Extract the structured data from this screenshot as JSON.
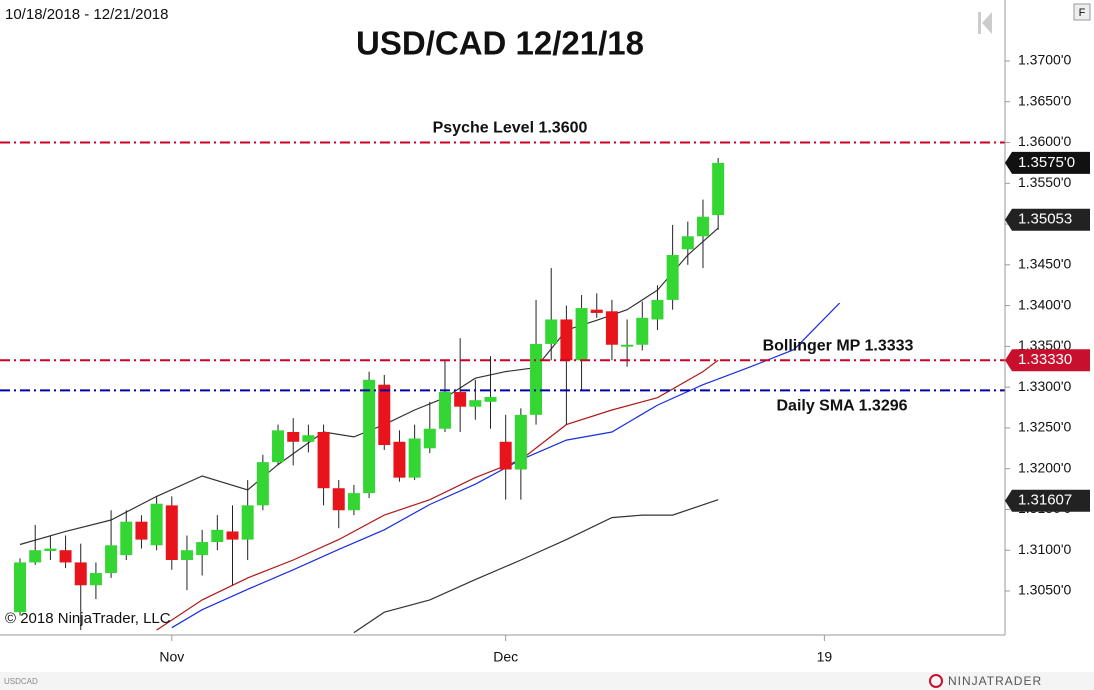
{
  "chart_data": {
    "type": "candlestick",
    "title": "USD/CAD 12/21/18",
    "subtitle": "10/18/2018 - 12/21/2018",
    "copyright": "© 2018 NinjaTrader, LLC",
    "symbol": "USDCAD",
    "brand": "NINJATRADER",
    "button": "F",
    "up_color": "#33d633",
    "down_color": "#e8141c",
    "open": [
      1.3024,
      1.3085,
      1.3099,
      1.31,
      1.3085,
      1.3057,
      1.3072,
      1.3094,
      1.3135,
      1.3106,
      1.3155,
      1.3088,
      1.3094,
      1.311,
      1.3123,
      1.3113,
      1.3155,
      1.3208,
      1.3245,
      1.3233,
      1.3245,
      1.3176,
      1.3149,
      1.317,
      1.3303,
      1.3233,
      1.3189,
      1.3225,
      1.3249,
      1.3294,
      1.3276,
      1.3282,
      1.3233,
      1.3199,
      1.3266,
      1.3353,
      1.3383,
      1.3333,
      1.3395,
      1.3393,
      1.335,
      1.3352,
      1.3383,
      1.3407,
      1.3469,
      1.3485,
      1.3511
    ],
    "high": [
      1.309,
      1.3131,
      1.3118,
      1.3118,
      1.3108,
      1.3085,
      1.3149,
      1.3149,
      1.3143,
      1.3166,
      1.3166,
      1.3118,
      1.3125,
      1.3143,
      1.3155,
      1.3186,
      1.3217,
      1.3254,
      1.3262,
      1.3254,
      1.3254,
      1.3186,
      1.318,
      1.3319,
      1.3315,
      1.3247,
      1.3254,
      1.3282,
      1.3333,
      1.336,
      1.3309,
      1.3338,
      1.3266,
      1.3274,
      1.3407,
      1.3446,
      1.34,
      1.3413,
      1.3415,
      1.3407,
      1.3383,
      1.3405,
      1.3425,
      1.3499,
      1.3503,
      1.353,
      1.3581
    ],
    "low": [
      1.302,
      1.3082,
      1.3088,
      1.3078,
      1.3002,
      1.304,
      1.3066,
      1.3088,
      1.3102,
      1.31,
      1.3076,
      1.3051,
      1.3069,
      1.31,
      1.3057,
      1.3088,
      1.3149,
      1.3204,
      1.3204,
      1.322,
      1.3155,
      1.3127,
      1.3143,
      1.3164,
      1.3223,
      1.3184,
      1.3186,
      1.3219,
      1.3245,
      1.3245,
      1.326,
      1.3249,
      1.3162,
      1.3162,
      1.3254,
      1.3333,
      1.3254,
      1.3296,
      1.3385,
      1.3333,
      1.3325,
      1.3345,
      1.337,
      1.3395,
      1.345,
      1.3446,
      1.3493
    ],
    "close": [
      1.3085,
      1.31,
      1.3102,
      1.3085,
      1.3057,
      1.3072,
      1.3106,
      1.3135,
      1.3113,
      1.3157,
      1.3088,
      1.31,
      1.311,
      1.3125,
      1.3113,
      1.3155,
      1.3208,
      1.3247,
      1.3233,
      1.3241,
      1.3176,
      1.3149,
      1.317,
      1.3309,
      1.3229,
      1.3189,
      1.3237,
      1.3249,
      1.3294,
      1.3276,
      1.3284,
      1.3288,
      1.3199,
      1.3266,
      1.3353,
      1.3383,
      1.3333,
      1.3397,
      1.3391,
      1.3352,
      1.3352,
      1.3385,
      1.3407,
      1.3462,
      1.3485,
      1.3509,
      1.3575
    ],
    "lines": [
      {
        "color": "#333333",
        "x": [
          0,
          3,
          6,
          9,
          12,
          15,
          17,
          20,
          22,
          24,
          26,
          28,
          30,
          32,
          34,
          36,
          38,
          40,
          42,
          44,
          46
        ],
        "values": [
          1.3107,
          1.3123,
          1.3137,
          1.3166,
          1.3191,
          1.3174,
          1.3205,
          1.3245,
          1.3239,
          1.3254,
          1.3272,
          1.3287,
          1.3311,
          1.3319,
          1.3324,
          1.337,
          1.3382,
          1.3395,
          1.3419,
          1.3462,
          1.3495
        ]
      },
      {
        "color": "#b01818",
        "x": [
          9,
          12,
          15,
          18,
          21,
          24,
          27,
          30,
          33,
          36,
          39,
          42,
          45,
          46
        ],
        "values": [
          1.3002,
          1.3039,
          1.3066,
          1.3088,
          1.3113,
          1.3143,
          1.3162,
          1.3189,
          1.3211,
          1.3254,
          1.3272,
          1.3287,
          1.3319,
          1.3333
        ]
      },
      {
        "color": "#1a2ee0",
        "x": [
          10,
          12,
          15,
          18,
          21,
          24,
          27,
          30,
          33,
          36,
          39,
          42,
          45,
          48,
          51,
          54
        ],
        "values": [
          1.3005,
          1.3027,
          1.3052,
          1.3076,
          1.3101,
          1.3125,
          1.3156,
          1.3181,
          1.3211,
          1.3235,
          1.3245,
          1.3278,
          1.3303,
          1.3324,
          1.3346,
          1.3403
        ]
      },
      {
        "color": "#333333",
        "x": [
          22,
          24,
          27,
          30,
          33,
          36,
          39,
          41,
          43,
          46
        ],
        "values": [
          1.2999,
          1.3024,
          1.3039,
          1.3064,
          1.3088,
          1.3113,
          1.314,
          1.3143,
          1.3143,
          1.3162
        ]
      }
    ],
    "levels": [
      {
        "value": 1.36,
        "label": "Psyche Level 1.3600",
        "color": "#cc0022"
      },
      {
        "value": 1.3333,
        "label": "Bollinger MP 1.3333",
        "color": "#cc0022"
      },
      {
        "value": 1.3296,
        "label": "Daily SMA 1.3296",
        "color": "#0000aa"
      }
    ],
    "price_tags": [
      {
        "value": 1.3575,
        "label": "1.3575'0",
        "color": "#111111"
      },
      {
        "value": 1.35053,
        "label": "1.35053",
        "color": "#222222"
      },
      {
        "value": 1.3333,
        "label": "1.33330",
        "color": "#c8102e"
      },
      {
        "value": 1.31607,
        "label": "1.31607",
        "color": "#222222"
      }
    ],
    "ylim": [
      1.2996,
      1.37748
    ],
    "yticks": [
      {
        "value": 1.305,
        "label": "1.3050'0"
      },
      {
        "value": 1.31,
        "label": "1.3100'0"
      },
      {
        "value": 1.315,
        "label": "1.3150'0"
      },
      {
        "value": 1.32,
        "label": "1.3200'0"
      },
      {
        "value": 1.325,
        "label": "1.3250'0"
      },
      {
        "value": 1.33,
        "label": "1.3300'0"
      },
      {
        "value": 1.335,
        "label": "1.3350'0"
      },
      {
        "value": 1.34,
        "label": "1.3400'0"
      },
      {
        "value": 1.345,
        "label": "1.3450'0"
      },
      {
        "value": 1.35,
        "label": "1.3500'0"
      },
      {
        "value": 1.355,
        "label": "1.3550'0"
      },
      {
        "value": 1.36,
        "label": "1.3600'0"
      },
      {
        "value": 1.365,
        "label": "1.3650'0"
      },
      {
        "value": 1.37,
        "label": "1.3700'0"
      }
    ],
    "xlim": [
      -1.32,
      64.9
    ],
    "xticks": [
      {
        "value": 10,
        "label": "Nov"
      },
      {
        "value": 32,
        "label": "Dec"
      },
      {
        "value": 53,
        "label": "19"
      }
    ]
  }
}
